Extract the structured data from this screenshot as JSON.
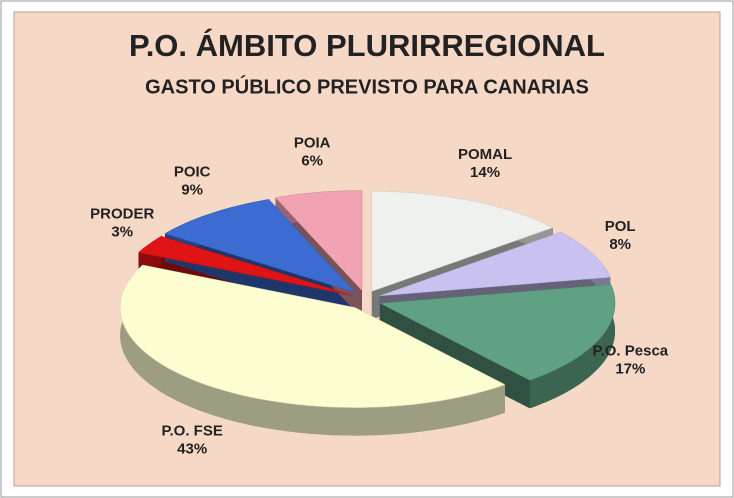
{
  "chart_data": {
    "type": "pie",
    "title": "P.O. ÁMBITO PLURIRREGIONAL",
    "subtitle": "GASTO PÚBLICO PREVISTO PARA CANARIAS",
    "categories": [
      "POMAL",
      "POL",
      "P.O. Pesca",
      "P.O. FSE",
      "PRODER",
      "POIC",
      "POIA"
    ],
    "values": [
      14,
      8,
      17,
      43,
      3,
      9,
      6
    ],
    "value_labels": [
      "14%",
      "8%",
      "17%",
      "43%",
      "3%",
      "9%",
      "6%"
    ],
    "colors": [
      "#eef1ee",
      "#c9c2f0",
      "#5fa182",
      "#fdfdd2",
      "#e01414",
      "#3c6bd2",
      "#f2a3b3"
    ]
  }
}
